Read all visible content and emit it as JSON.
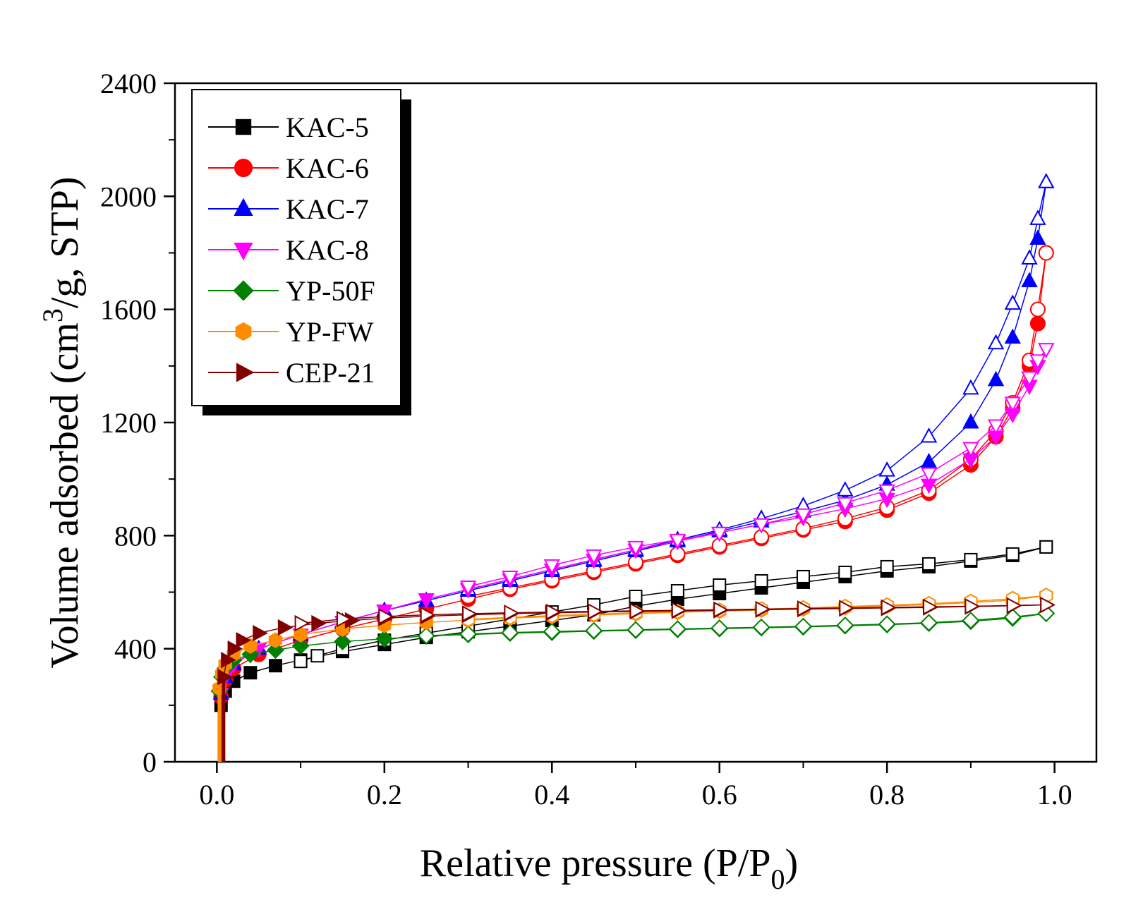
{
  "chart_data": {
    "type": "scatter",
    "title": "",
    "xlabel": "Relative pressure (P/P",
    "xlabel_sub": "0",
    "xlabel_tail": ")",
    "ylabel": "Volume adsorbed (cm",
    "ylabel_sup": "3",
    "ylabel_tail": "/g, STP)",
    "xlim": [
      -0.05,
      1.05
    ],
    "ylim": [
      0,
      2400
    ],
    "xticks": [
      0.0,
      0.2,
      0.4,
      0.6,
      0.8,
      1.0
    ],
    "xtick_labels": [
      "0.0",
      "0.2",
      "0.4",
      "0.6",
      "0.8",
      "1.0"
    ],
    "yticks": [
      0,
      400,
      800,
      1200,
      1600,
      2000,
      2400
    ],
    "ytick_labels": [
      "0",
      "400",
      "800",
      "1200",
      "1600",
      "2000",
      "2400"
    ],
    "legend_position": "top-left",
    "notes": "Filled markers = adsorption branch, open markers = desorption branch",
    "series": [
      {
        "name": "KAC-5",
        "color": "#000000",
        "marker": "square",
        "adsorption": {
          "x": [
            0.005,
            0.01,
            0.02,
            0.04,
            0.07,
            0.1,
            0.15,
            0.2,
            0.25,
            0.3,
            0.35,
            0.4,
            0.45,
            0.5,
            0.55,
            0.6,
            0.65,
            0.7,
            0.75,
            0.8,
            0.85,
            0.9,
            0.95,
            0.99
          ],
          "y": [
            200,
            250,
            285,
            315,
            340,
            360,
            390,
            415,
            440,
            460,
            480,
            500,
            520,
            550,
            575,
            595,
            615,
            635,
            655,
            675,
            690,
            710,
            730,
            760
          ]
        },
        "desorption": {
          "x": [
            0.99,
            0.95,
            0.9,
            0.85,
            0.8,
            0.75,
            0.7,
            0.65,
            0.6,
            0.55,
            0.5,
            0.45,
            0.4,
            0.35,
            0.3,
            0.25,
            0.2,
            0.15,
            0.12,
            0.1
          ],
          "y": [
            760,
            735,
            715,
            700,
            690,
            670,
            655,
            640,
            625,
            605,
            585,
            555,
            530,
            505,
            480,
            455,
            430,
            400,
            375,
            355
          ]
        }
      },
      {
        "name": "KAC-6",
        "color": "#ff0000",
        "marker": "circle",
        "adsorption": {
          "x": [
            0.005,
            0.01,
            0.02,
            0.05,
            0.1,
            0.15,
            0.2,
            0.25,
            0.3,
            0.35,
            0.4,
            0.45,
            0.5,
            0.55,
            0.6,
            0.65,
            0.7,
            0.75,
            0.8,
            0.85,
            0.9,
            0.93,
            0.95,
            0.97,
            0.98,
            0.99
          ],
          "y": [
            230,
            290,
            330,
            380,
            430,
            470,
            505,
            540,
            575,
            610,
            640,
            670,
            700,
            730,
            760,
            790,
            820,
            850,
            890,
            950,
            1050,
            1150,
            1250,
            1400,
            1550,
            1800
          ]
        },
        "desorption": {
          "x": [
            0.99,
            0.98,
            0.97,
            0.95,
            0.93,
            0.9,
            0.85,
            0.8,
            0.75,
            0.7,
            0.65,
            0.6,
            0.55,
            0.5,
            0.45,
            0.4,
            0.35,
            0.3
          ],
          "y": [
            1800,
            1600,
            1420,
            1270,
            1170,
            1070,
            960,
            900,
            860,
            825,
            795,
            765,
            735,
            705,
            675,
            645,
            615,
            585
          ]
        }
      },
      {
        "name": "KAC-7",
        "color": "#0000ff",
        "marker": "triangle-up",
        "adsorption": {
          "x": [
            0.005,
            0.01,
            0.02,
            0.05,
            0.1,
            0.15,
            0.2,
            0.25,
            0.3,
            0.35,
            0.4,
            0.45,
            0.5,
            0.55,
            0.6,
            0.65,
            0.7,
            0.75,
            0.8,
            0.85,
            0.9,
            0.93,
            0.95,
            0.97,
            0.98,
            0.99
          ],
          "y": [
            240,
            300,
            345,
            400,
            450,
            495,
            535,
            570,
            605,
            640,
            675,
            710,
            745,
            780,
            815,
            850,
            885,
            925,
            980,
            1060,
            1200,
            1350,
            1500,
            1700,
            1850,
            2050
          ]
        },
        "desorption": {
          "x": [
            0.99,
            0.98,
            0.97,
            0.95,
            0.93,
            0.9,
            0.85,
            0.8,
            0.75,
            0.7,
            0.65,
            0.6,
            0.55,
            0.5,
            0.45,
            0.4,
            0.35,
            0.3
          ],
          "y": [
            2050,
            1920,
            1780,
            1620,
            1480,
            1320,
            1150,
            1030,
            960,
            905,
            860,
            820,
            785,
            750,
            715,
            680,
            645,
            610
          ]
        }
      },
      {
        "name": "KAC-8",
        "color": "#ff00ff",
        "marker": "triangle-down",
        "adsorption": {
          "x": [
            0.005,
            0.01,
            0.02,
            0.05,
            0.1,
            0.15,
            0.2,
            0.25,
            0.3,
            0.35,
            0.4,
            0.45,
            0.5,
            0.55,
            0.6,
            0.65,
            0.7,
            0.75,
            0.8,
            0.85,
            0.9,
            0.93,
            0.95,
            0.97,
            0.98,
            0.99
          ],
          "y": [
            240,
            300,
            345,
            400,
            450,
            495,
            535,
            575,
            610,
            645,
            680,
            715,
            750,
            780,
            810,
            840,
            865,
            895,
            930,
            980,
            1070,
            1150,
            1230,
            1330,
            1400,
            1460
          ]
        },
        "desorption": {
          "x": [
            0.99,
            0.98,
            0.97,
            0.95,
            0.93,
            0.9,
            0.85,
            0.8,
            0.75,
            0.7,
            0.65,
            0.6,
            0.55,
            0.5,
            0.45,
            0.4,
            0.35,
            0.3
          ],
          "y": [
            1460,
            1420,
            1360,
            1270,
            1190,
            1110,
            1020,
            960,
            915,
            875,
            840,
            810,
            785,
            760,
            730,
            695,
            655,
            620
          ]
        }
      },
      {
        "name": "YP-50F",
        "color": "#008000",
        "marker": "diamond",
        "adsorption": {
          "x": [
            0.003,
            0.006,
            0.01,
            0.02,
            0.04,
            0.07,
            0.1,
            0.15,
            0.2,
            0.25,
            0.3,
            0.35,
            0.4,
            0.45,
            0.5,
            0.55,
            0.6,
            0.65,
            0.7,
            0.75,
            0.8,
            0.85,
            0.9,
            0.95,
            0.99
          ],
          "y": [
            250,
            300,
            330,
            360,
            380,
            395,
            410,
            425,
            435,
            445,
            450,
            455,
            458,
            462,
            465,
            468,
            471,
            474,
            477,
            481,
            485,
            490,
            497,
            508,
            525
          ]
        },
        "desorption": {
          "x": [
            0.99,
            0.95,
            0.9,
            0.85,
            0.8,
            0.75,
            0.7,
            0.65,
            0.6,
            0.55,
            0.5,
            0.45,
            0.4,
            0.35,
            0.3,
            0.25
          ],
          "y": [
            525,
            512,
            500,
            492,
            487,
            483,
            479,
            476,
            473,
            470,
            467,
            464,
            461,
            457,
            452,
            446
          ]
        }
      },
      {
        "name": "YP-FW",
        "color": "#ff8c00",
        "marker": "hexagon",
        "adsorption": {
          "x": [
            0.003,
            0.006,
            0.01,
            0.02,
            0.04,
            0.07,
            0.1,
            0.15,
            0.2,
            0.25,
            0.3,
            0.35,
            0.4,
            0.45,
            0.5,
            0.55,
            0.6,
            0.65,
            0.7,
            0.75,
            0.8,
            0.85,
            0.9,
            0.95,
            0.99
          ],
          "y": [
            260,
            310,
            345,
            380,
            410,
            430,
            450,
            470,
            483,
            493,
            501,
            508,
            514,
            519,
            524,
            529,
            533,
            537,
            541,
            546,
            551,
            556,
            563,
            572,
            588
          ]
        },
        "desorption": {
          "x": [
            0.99,
            0.95,
            0.9,
            0.85,
            0.8,
            0.75,
            0.7,
            0.65,
            0.6,
            0.55,
            0.5,
            0.45,
            0.4,
            0.35,
            0.3
          ],
          "y": [
            588,
            577,
            567,
            559,
            554,
            549,
            544,
            540,
            536,
            532,
            527,
            522,
            517,
            511,
            504
          ]
        }
      },
      {
        "name": "CEP-21",
        "color": "#800000",
        "marker": "triangle-right",
        "adsorption": {
          "x": [
            0.008,
            0.012,
            0.02,
            0.03,
            0.05,
            0.08,
            0.12,
            0.16,
            0.2,
            0.25,
            0.3,
            0.35,
            0.4,
            0.45,
            0.5,
            0.55,
            0.6,
            0.65,
            0.7,
            0.75,
            0.8,
            0.85,
            0.9,
            0.95,
            0.99
          ],
          "y": [
            300,
            360,
            400,
            430,
            455,
            475,
            490,
            500,
            508,
            515,
            520,
            524,
            527,
            530,
            532,
            534,
            536,
            538,
            540,
            542,
            544,
            546,
            549,
            552,
            555
          ]
        },
        "desorption": {
          "x": [
            0.99,
            0.95,
            0.9,
            0.85,
            0.8,
            0.75,
            0.7,
            0.65,
            0.6,
            0.55,
            0.5,
            0.45,
            0.4,
            0.35,
            0.3,
            0.25,
            0.2,
            0.15,
            0.1
          ],
          "y": [
            555,
            553,
            550,
            548,
            546,
            544,
            542,
            540,
            538,
            536,
            534,
            532,
            530,
            527,
            524,
            520,
            514,
            505,
            490
          ]
        }
      }
    ]
  }
}
